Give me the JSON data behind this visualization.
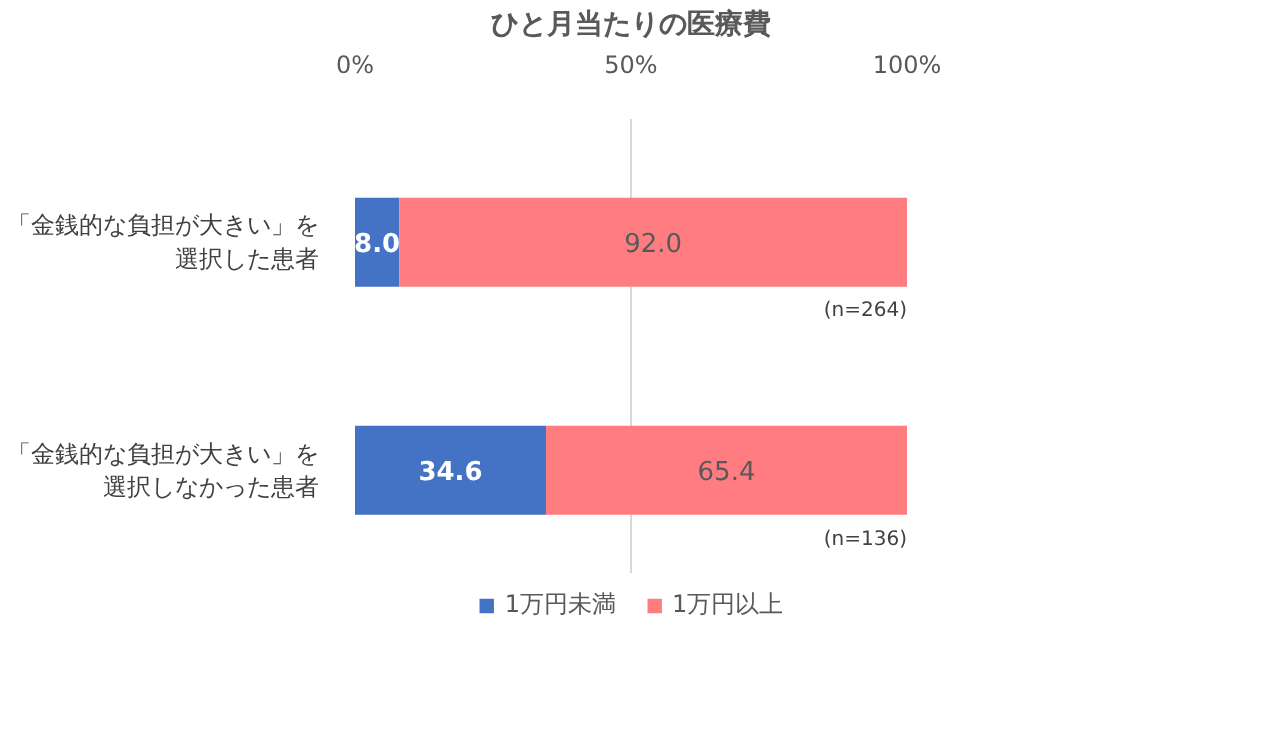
{
  "chart_data": {
    "type": "bar",
    "orientation": "horizontal",
    "stacked": true,
    "title": "ひと月当たりの医療費",
    "categories": [
      "「金銭的な負担が大きい」を選択した患者",
      "「金銭的な負担が大きい」を選択しなかった患者"
    ],
    "series": [
      {
        "name": "1万円未満",
        "color": "#4472c4",
        "values": [
          8.0,
          34.6
        ],
        "value_labels": [
          "8.0",
          "34.6"
        ]
      },
      {
        "name": "1万円以上",
        "color": "#ff7c80",
        "values": [
          92.0,
          65.4
        ],
        "value_labels": [
          "92.0",
          "65.4"
        ]
      }
    ],
    "xlim": [
      0,
      100
    ],
    "xticks": [
      {
        "value": 0,
        "label": "0%"
      },
      {
        "value": 50,
        "label": "50%"
      },
      {
        "value": 100,
        "label": "100%"
      }
    ],
    "grid": "x",
    "legend": "bottom",
    "annotations": [
      "(n=264)",
      "(n=136)"
    ]
  }
}
